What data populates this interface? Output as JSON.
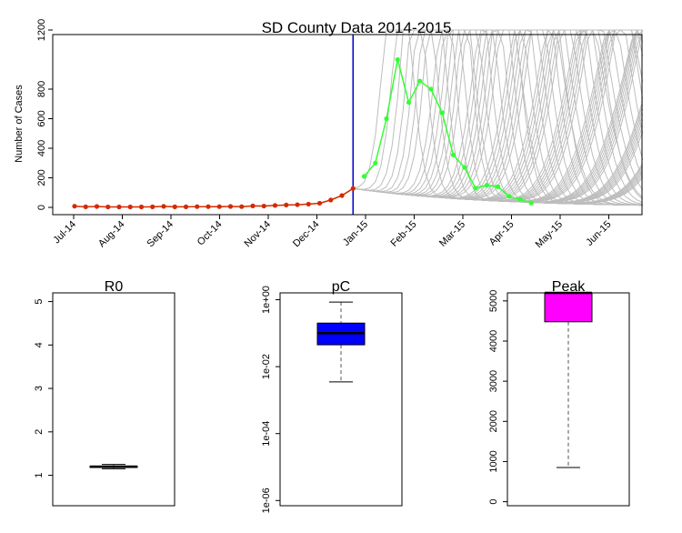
{
  "colors": {
    "observed": "#d42a00",
    "forecast_points": "#33ff33",
    "simulations": "#bdbdbd",
    "vline": "#0000cc",
    "pc_box": "#0000ff",
    "peak_box": "#ff00ff"
  },
  "chart_data": [
    {
      "type": "line",
      "title": "SD County Data 2014-2015",
      "xlabel": "",
      "ylabel": "Number of Cases",
      "ylim": [
        0,
        1200
      ],
      "yticks": [
        "0",
        "200",
        "400",
        "600",
        "800",
        "1200"
      ],
      "xticks": [
        "Jul-14",
        "Aug-14",
        "Sep-14",
        "Oct-14",
        "Nov-14",
        "Dec-14",
        "Jan-15",
        "Feb-15",
        "Mar-15",
        "Apr-15",
        "May-15",
        "Jun-15"
      ],
      "vline_week": 25,
      "series": [
        {
          "kind": "observed",
          "x": [
            0,
            1,
            2,
            3,
            4,
            5,
            6,
            7,
            8,
            9,
            10,
            11,
            12,
            13,
            14,
            15,
            16,
            17,
            18,
            19,
            20,
            21,
            22,
            23,
            24,
            25
          ],
          "values": [
            8,
            4,
            6,
            3,
            3,
            3,
            3,
            4,
            7,
            4,
            4,
            5,
            5,
            5,
            6,
            5,
            10,
            9,
            13,
            16,
            18,
            22,
            28,
            50,
            80,
            128
          ]
        },
        {
          "kind": "forecast",
          "x": [
            26,
            27,
            28,
            29,
            30,
            31,
            32,
            33,
            34,
            35,
            36,
            37,
            38,
            39,
            40,
            41
          ],
          "values": [
            210,
            300,
            600,
            1000,
            710,
            855,
            800,
            640,
            355,
            270,
            130,
            150,
            140,
            75,
            55,
            30
          ]
        }
      ]
    },
    {
      "type": "box",
      "title": "R0",
      "ylim": [
        0.3,
        5.2
      ],
      "yticks": [
        "1",
        "2",
        "3",
        "4",
        "5"
      ],
      "whisker_low": 1.15,
      "q1": 1.18,
      "median": 1.2,
      "q3": 1.21,
      "whisker_high": 1.25
    },
    {
      "type": "box",
      "title": "pC",
      "scale": "log",
      "ylim": [
        7e-07,
        1.6
      ],
      "yticks": [
        "1e-06",
        "1e-04",
        "1e-02",
        "1e+00"
      ],
      "whisker_low": 0.0035,
      "q1": 0.045,
      "median": 0.1,
      "q3": 0.2,
      "whisker_high": 0.85
    },
    {
      "type": "box",
      "title": "Peak",
      "ylim": [
        -100,
        5200
      ],
      "yticks": [
        "0",
        "1000",
        "2000",
        "3000",
        "4000",
        "5000"
      ],
      "whisker_low": 850,
      "q1": 4480,
      "median": 5200,
      "q3": 5200,
      "whisker_high": 5200
    }
  ]
}
